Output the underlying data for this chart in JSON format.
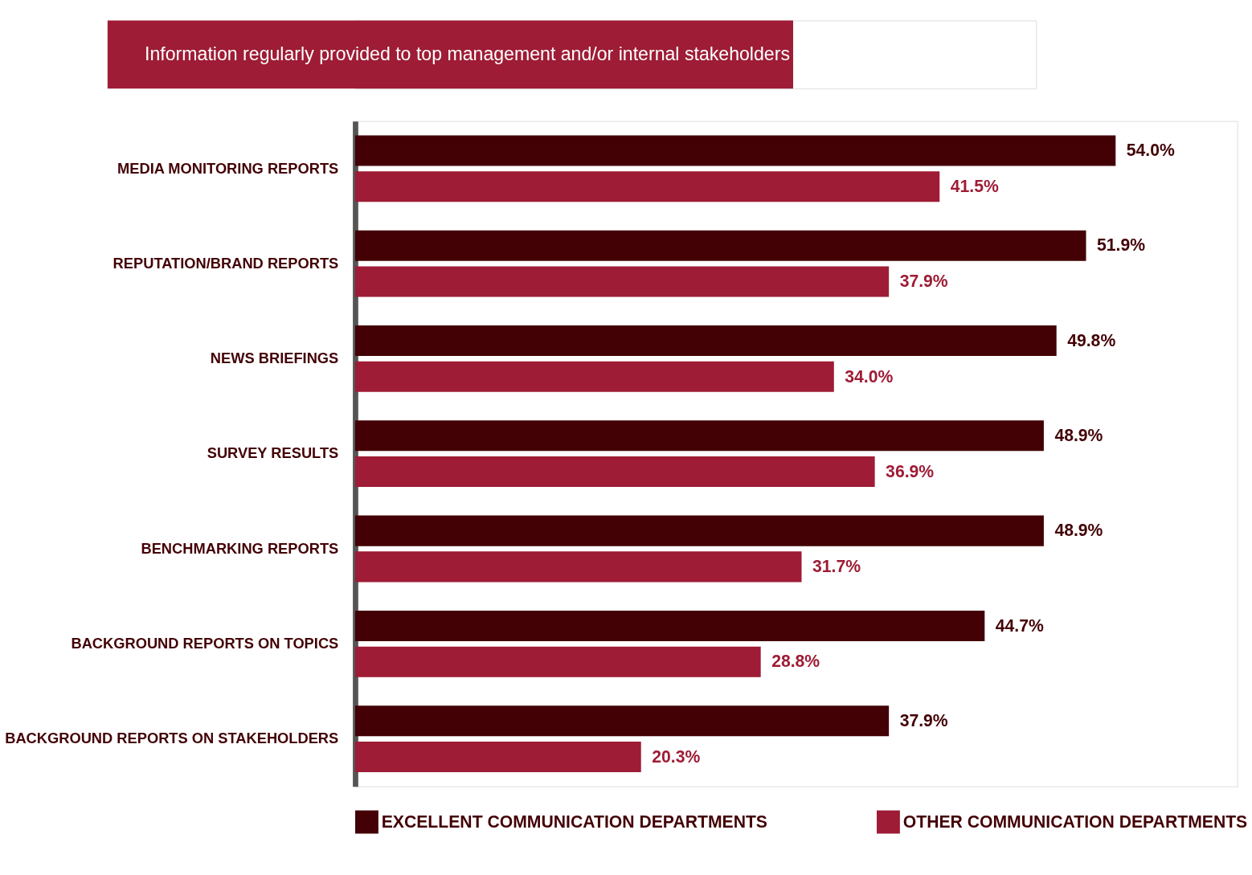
{
  "chart_data": {
    "type": "bar",
    "orientation": "horizontal",
    "title": "Information regularly provided to top management and/or internal stakeholders",
    "categories": [
      "MEDIA MONITORING REPORTS",
      "REPUTATION/BRAND REPORTS",
      "NEWS BRIEFINGS",
      "SURVEY RESULTS",
      "BENCHMARKING REPORTS",
      "BACKGROUND REPORTS ON TOPICS",
      "BACKGROUND REPORTS ON STAKEHOLDERS"
    ],
    "series": [
      {
        "name": "EXCELLENT COMMUNICATION DEPARTMENTS",
        "color": "#430005",
        "values": [
          54.0,
          51.9,
          49.8,
          48.9,
          48.9,
          44.7,
          37.9
        ],
        "value_labels": [
          "54.0%",
          "51.9%",
          "49.8%",
          "48.9%",
          "48.9%",
          "44.7%",
          "37.9%"
        ]
      },
      {
        "name": "OTHER COMMUNICATION DEPARTMENTS",
        "color": "#9e1c35",
        "values": [
          41.5,
          37.9,
          34.0,
          36.9,
          31.7,
          28.8,
          20.3
        ],
        "value_labels": [
          "41.5%",
          "37.9%",
          "34.0%",
          "36.9%",
          "31.7%",
          "28.8%",
          "20.3%"
        ]
      }
    ],
    "legend": "bottom",
    "tick_labels": "y"
  }
}
